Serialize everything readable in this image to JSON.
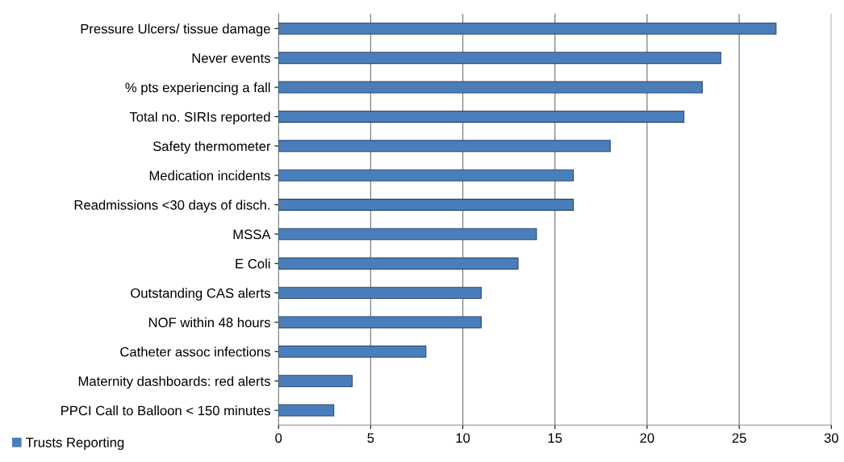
{
  "chart_data": {
    "type": "bar",
    "orientation": "horizontal",
    "categories": [
      "Pressure Ulcers/ tissue damage",
      "Never events",
      "% pts experiencing a fall",
      "Total no. SIRIs reported",
      "Safety thermometer",
      "Medication incidents",
      "Readmissions <30 days of disch.",
      "MSSA",
      "E Coli",
      "Outstanding CAS alerts",
      "NOF within 48 hours",
      "Catheter assoc infections",
      "Maternity dashboards: red alerts",
      "PPCI Call to Balloon < 150 minutes"
    ],
    "series": [
      {
        "name": "Trusts Reporting",
        "color": "#4a7ebb",
        "values": [
          27,
          24,
          23,
          22,
          18,
          16,
          16,
          14,
          13,
          11,
          11,
          8,
          4,
          3
        ]
      }
    ],
    "xlim": [
      0,
      30
    ],
    "xticks": [
      0,
      5,
      10,
      15,
      20,
      25,
      30
    ],
    "grid": "x",
    "legend": "bottom left"
  }
}
